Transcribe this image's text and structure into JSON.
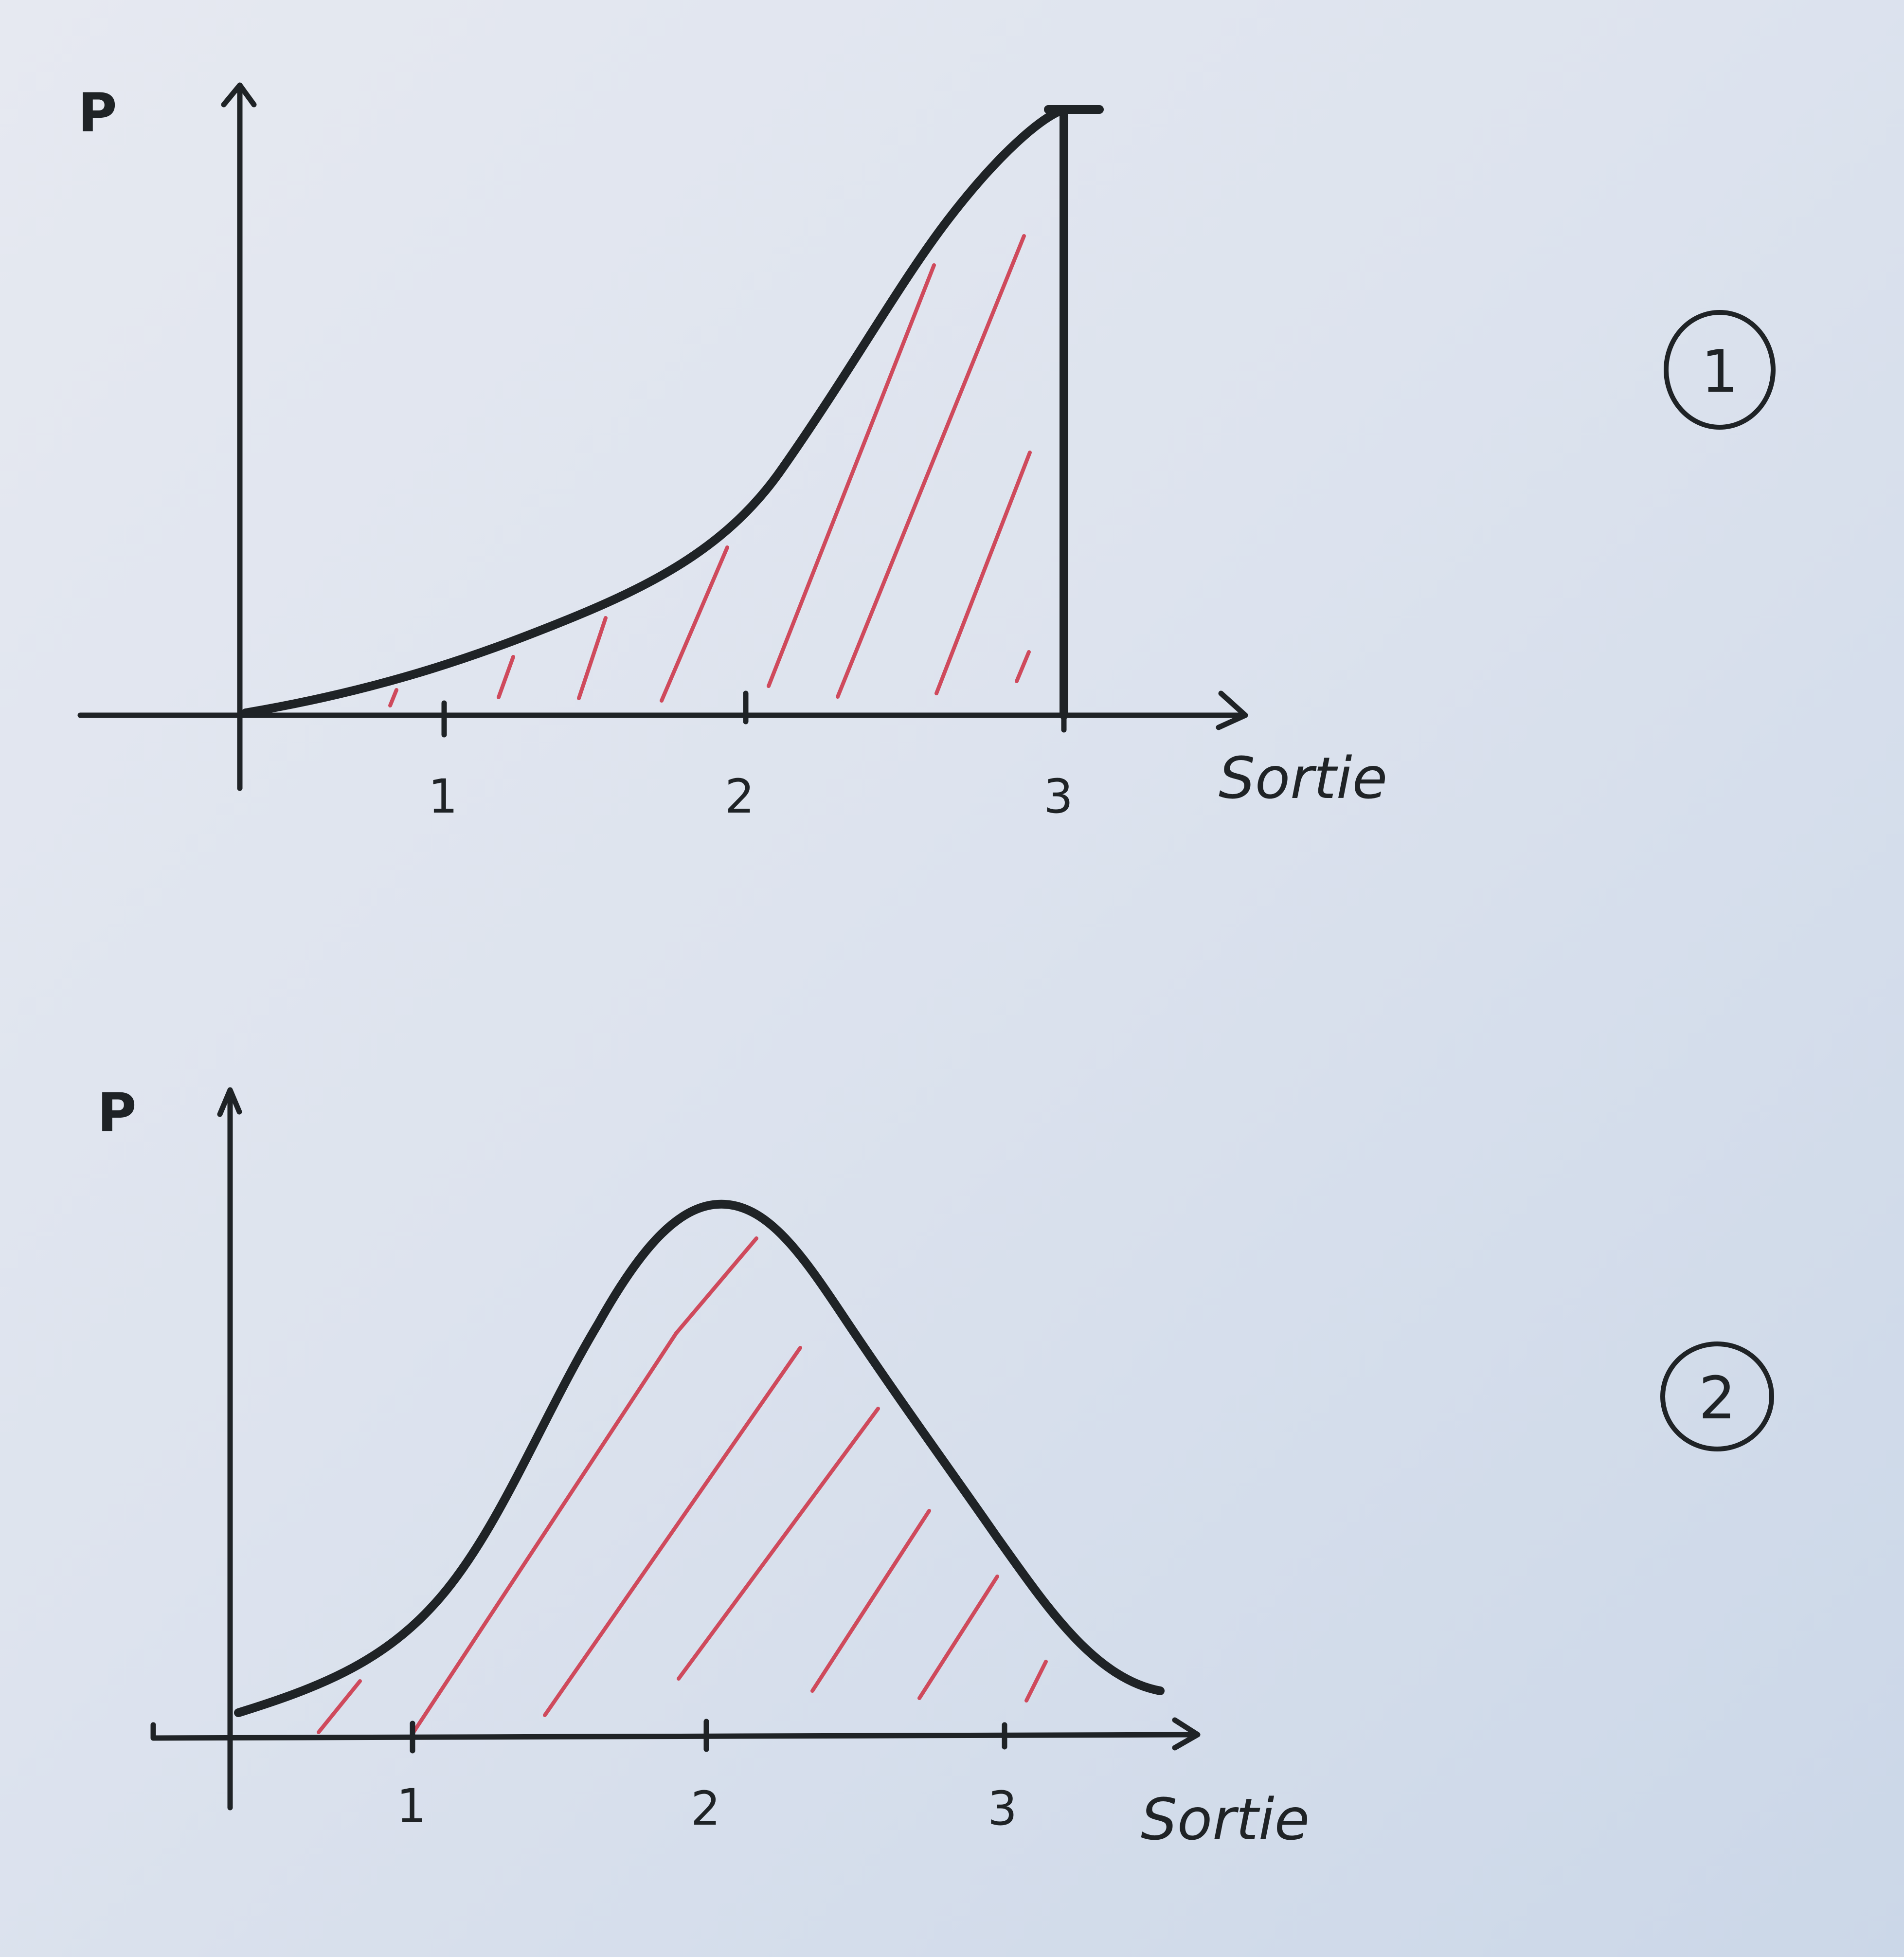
{
  "figures": [
    {
      "number": "1",
      "ylabel": "P",
      "xlabel": "Sortie",
      "ticks": [
        "1",
        "2",
        "3"
      ],
      "tick_values": [
        1,
        2,
        3
      ],
      "shape": "increasing curve up to x = 3, area under curve hatched",
      "colors": {
        "curve": "#1f2326",
        "hatch": "#cf4a5c"
      }
    },
    {
      "number": "2",
      "ylabel": "P",
      "xlabel": "Sortie",
      "ticks": [
        "1",
        "2",
        "3"
      ],
      "tick_values": [
        1,
        2,
        3
      ],
      "shape": "bell-shaped curve peaking near x = 2, area under curve hatched",
      "colors": {
        "curve": "#1f2326",
        "hatch": "#cf4a5c"
      }
    }
  ]
}
